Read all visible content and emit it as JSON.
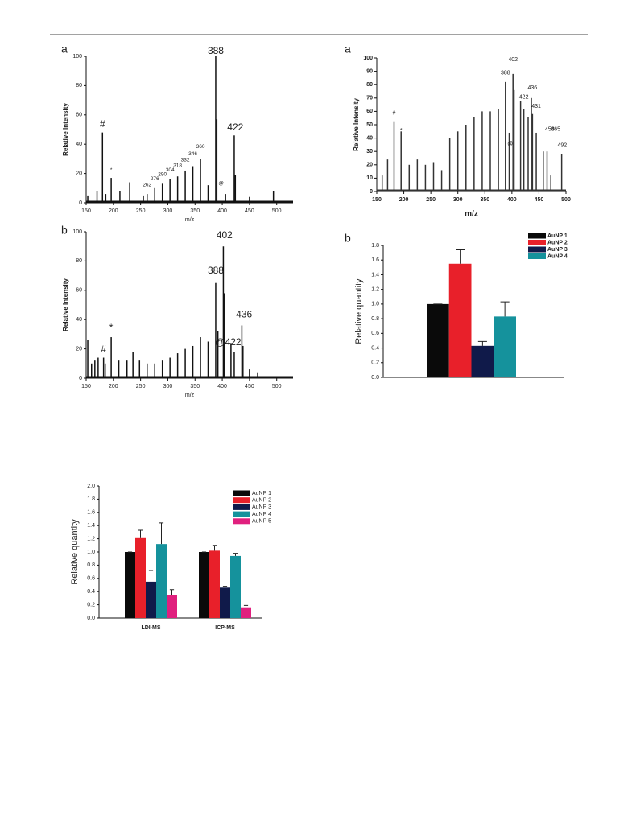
{
  "chart_data": [
    {
      "type": "spectrum",
      "panel": "a",
      "xlabel": "m/z",
      "ylabel": "Relative Intensity",
      "xlim": [
        150,
        530
      ],
      "xticks": [
        150,
        200,
        250,
        300,
        350,
        400,
        450,
        500
      ],
      "ylim": [
        0,
        100
      ],
      "yticks": [
        0,
        20,
        40,
        60,
        80,
        100
      ],
      "color": "#111111",
      "x": [
        153,
        170,
        180,
        186,
        196,
        212,
        230,
        255,
        262,
        276,
        290,
        304,
        318,
        332,
        346,
        360,
        374,
        388,
        390,
        406,
        422,
        424,
        450,
        494
      ],
      "values": [
        5,
        8,
        48,
        6,
        17,
        8,
        14,
        5,
        6,
        10,
        13,
        16,
        18,
        22,
        25,
        30,
        12,
        100,
        57,
        6,
        46,
        19,
        4,
        8
      ],
      "peak_labels": [
        {
          "label": "388",
          "x": 388,
          "y": 100,
          "color": "#222222"
        },
        {
          "label": "422",
          "x": 424,
          "y": 48,
          "color": "#222222"
        },
        {
          "label": "#",
          "x": 180,
          "y": 50,
          "color": "#222222"
        },
        {
          "label": "*",
          "x": 196,
          "y": 19,
          "color": "#222222"
        },
        {
          "label": "262",
          "x": 262,
          "y": 9,
          "color": "#222222"
        },
        {
          "label": "276",
          "x": 276,
          "y": 13,
          "color": "#222222"
        },
        {
          "label": "290",
          "x": 290,
          "y": 16,
          "color": "#222222"
        },
        {
          "label": "304",
          "x": 304,
          "y": 19,
          "color": "#222222"
        },
        {
          "label": "318",
          "x": 318,
          "y": 22,
          "color": "#222222"
        },
        {
          "label": "332",
          "x": 332,
          "y": 26,
          "color": "#222222"
        },
        {
          "label": "346",
          "x": 346,
          "y": 30,
          "color": "#222222"
        },
        {
          "label": "360",
          "x": 360,
          "y": 35,
          "color": "#222222"
        },
        {
          "label": "@",
          "x": 398,
          "y": 10,
          "color": "#222222"
        }
      ]
    },
    {
      "type": "spectrum",
      "panel": "a",
      "xlabel": "m/z",
      "ylabel": "Relative Intensity",
      "xlim": [
        150,
        500
      ],
      "xticks": [
        150,
        200,
        250,
        300,
        350,
        400,
        450,
        500
      ],
      "ylim": [
        0,
        100
      ],
      "yticks": [
        0,
        10,
        20,
        30,
        40,
        50,
        60,
        70,
        80,
        90,
        100
      ],
      "color": "#333333",
      "x": [
        160,
        170,
        182,
        195,
        210,
        225,
        240,
        255,
        270,
        285,
        300,
        315,
        330,
        345,
        360,
        375,
        388,
        395,
        402,
        404,
        416,
        422,
        430,
        436,
        438,
        445,
        458,
        465,
        472,
        492
      ],
      "values": [
        12,
        24,
        52,
        45,
        20,
        24,
        20,
        22,
        16,
        40,
        45,
        50,
        56,
        60,
        60,
        62,
        82,
        44,
        88,
        76,
        68,
        62,
        56,
        70,
        58,
        44,
        30,
        30,
        12,
        28
      ],
      "peak_labels": [
        {
          "label": "402",
          "x": 402,
          "y": 95,
          "color": "#e8382c"
        },
        {
          "label": "388",
          "x": 388,
          "y": 85,
          "color": "#222222"
        },
        {
          "label": "436",
          "x": 438,
          "y": 74,
          "color": "#e8382c"
        },
        {
          "label": "422",
          "x": 422,
          "y": 67,
          "color": "#222222"
        },
        {
          "label": "431",
          "x": 445,
          "y": 60,
          "color": "#1a9a9a"
        },
        {
          "label": "458",
          "x": 470,
          "y": 43,
          "color": "#1d2a6b"
        },
        {
          "label": "465",
          "x": 481,
          "y": 43,
          "color": "#1a9a9a"
        },
        {
          "label": "492",
          "x": 493,
          "y": 31,
          "color": "#1d2a6b"
        },
        {
          "label": "#",
          "x": 182,
          "y": 55,
          "color": "#222222"
        },
        {
          "label": "*",
          "x": 195,
          "y": 42,
          "color": "#222222"
        },
        {
          "label": "@",
          "x": 397,
          "y": 32,
          "color": "#222222"
        }
      ]
    },
    {
      "type": "spectrum",
      "panel": "b",
      "xlabel": "m/z",
      "ylabel": "Relative Intensity",
      "xlim": [
        150,
        530
      ],
      "xticks": [
        150,
        200,
        250,
        300,
        350,
        400,
        450,
        500
      ],
      "ylim": [
        0,
        100
      ],
      "yticks": [
        0,
        20,
        40,
        60,
        80,
        100
      ],
      "color": "#111111",
      "x": [
        153,
        160,
        166,
        172,
        182,
        185,
        196,
        210,
        225,
        236,
        248,
        262,
        276,
        290,
        304,
        318,
        332,
        346,
        360,
        374,
        388,
        392,
        402,
        404,
        416,
        422,
        436,
        438,
        450,
        465
      ],
      "values": [
        26,
        10,
        12,
        14,
        14,
        10,
        28,
        12,
        12,
        18,
        12,
        10,
        10,
        12,
        14,
        17,
        20,
        22,
        28,
        25,
        65,
        32,
        90,
        58,
        24,
        18,
        36,
        22,
        6,
        4
      ],
      "peak_labels": [
        {
          "label": "402",
          "x": 404,
          "y": 94,
          "color": "#222222"
        },
        {
          "label": "388",
          "x": 388,
          "y": 70,
          "color": "#222222"
        },
        {
          "label": "436",
          "x": 440,
          "y": 40,
          "color": "#222222"
        },
        {
          "label": "422",
          "x": 420,
          "y": 21,
          "color": "#222222"
        },
        {
          "label": "@",
          "x": 396,
          "y": 21,
          "color": "#222222"
        },
        {
          "label": "#",
          "x": 182,
          "y": 16,
          "color": "#222222"
        },
        {
          "label": "*",
          "x": 196,
          "y": 31,
          "color": "#222222"
        }
      ]
    },
    {
      "type": "bar",
      "panel": "b",
      "ylabel": "Relative quantity",
      "ylim": [
        0,
        1.8
      ],
      "yticks": [
        {
          "value": 0,
          "label": "0.0"
        },
        0.2,
        0.4,
        0.6,
        0.8,
        {
          "value": 1,
          "label": "1.0"
        },
        1.2,
        1.4,
        1.6,
        1.8
      ],
      "categories": [
        null
      ],
      "legend": "upper right",
      "series": [
        {
          "name": "AuNP 1",
          "color": "#0a0a0a",
          "values": [
            1.0
          ],
          "errors": [
            0
          ]
        },
        {
          "name": "AuNP 2",
          "color": "#e8202a",
          "values": [
            1.55
          ],
          "errors": [
            0.19
          ]
        },
        {
          "name": "AuNP 3",
          "color": "#101a4a",
          "values": [
            0.43
          ],
          "errors": [
            0.06
          ]
        },
        {
          "name": "AuNP 4",
          "color": "#15929c",
          "values": [
            0.83
          ],
          "errors": [
            0.2
          ]
        }
      ]
    },
    {
      "type": "bar",
      "ylabel": "Relative quantity",
      "ylim": [
        0,
        2.0
      ],
      "yticks": [
        {
          "value": 0,
          "label": "0.0"
        },
        0.2,
        0.4,
        0.6,
        0.8,
        {
          "value": 1,
          "label": "1.0"
        },
        1.2,
        1.4,
        1.6,
        1.8,
        {
          "value": 2,
          "label": "2.0"
        }
      ],
      "categories": [
        "LDI-MS",
        "ICP-MS"
      ],
      "legend": "upper right",
      "series": [
        {
          "name": "AuNP 1",
          "color": "#0a0a0a",
          "values": [
            1.0,
            1.0
          ],
          "errors": [
            0,
            0
          ]
        },
        {
          "name": "AuNP 2",
          "color": "#e8202a",
          "values": [
            1.21,
            1.02
          ],
          "errors": [
            0.12,
            0.08
          ]
        },
        {
          "name": "AuNP 3",
          "color": "#101a4a",
          "values": [
            0.55,
            0.46
          ],
          "errors": [
            0.17,
            0.02
          ]
        },
        {
          "name": "AuNP 4",
          "color": "#15929c",
          "values": [
            1.12,
            0.94
          ],
          "errors": [
            0.32,
            0.04
          ]
        },
        {
          "name": "AuNP 5",
          "color": "#e0207e",
          "values": [
            0.35,
            0.15
          ],
          "errors": [
            0.08,
            0.04
          ]
        }
      ]
    }
  ]
}
